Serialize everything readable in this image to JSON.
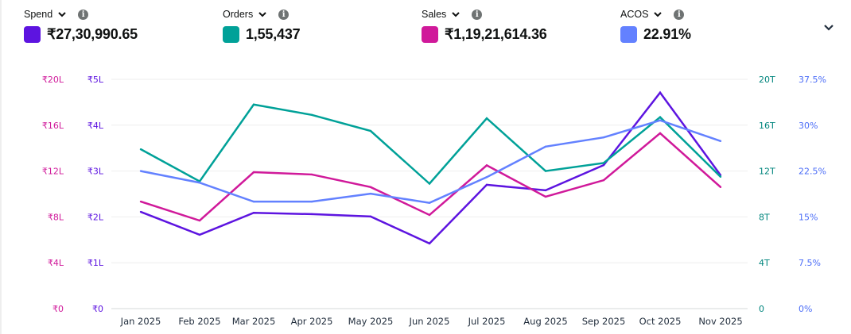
{
  "metrics": [
    {
      "label": "Spend",
      "value": "₹27,30,990.65",
      "color": "#5d14e0",
      "info_icon": "info-icon",
      "dropdown_icon": "chevron-down-icon"
    },
    {
      "label": "Orders",
      "value": "1,55,437",
      "color": "#00a198",
      "info_icon": "info-icon",
      "dropdown_icon": "chevron-down-icon"
    },
    {
      "label": "Sales",
      "value": "₹1,19,21,614.36",
      "color": "#d0199a",
      "info_icon": "info-icon",
      "dropdown_icon": "chevron-down-icon"
    },
    {
      "label": "ACOS",
      "value": "22.91%",
      "color": "#6381ff",
      "info_icon": "info-icon",
      "dropdown_icon": "chevron-down-icon"
    }
  ],
  "expand_icon": "chevron-down-icon",
  "chart_data": {
    "type": "line",
    "title": "",
    "grid": true,
    "categories": [
      "Jan 2025",
      "Feb 2025",
      "Mar 2025",
      "Apr 2025",
      "May 2025",
      "Jun 2025",
      "Jul 2025",
      "Aug 2025",
      "Sep 2025",
      "Oct 2025",
      "Nov 2025"
    ],
    "axes": {
      "sales_left": {
        "ticks": [
          "₹0",
          "₹4L",
          "₹8L",
          "₹12L",
          "₹16L",
          "₹20L"
        ],
        "range": [
          0,
          2000000
        ],
        "color": "#d0199a"
      },
      "spend_left": {
        "ticks": [
          "₹0",
          "₹1L",
          "₹2L",
          "₹3L",
          "₹4L",
          "₹5L"
        ],
        "range": [
          0,
          500000
        ],
        "color": "#5d14e0"
      },
      "orders_right": {
        "ticks": [
          "0",
          "4T",
          "8T",
          "12T",
          "16T",
          "20T"
        ],
        "range": [
          0,
          20000
        ],
        "color": "#00857d"
      },
      "acos_right": {
        "ticks": [
          "0%",
          "7.5%",
          "15%",
          "22.5%",
          "30%",
          "37.5%"
        ],
        "range": [
          0,
          37.5
        ],
        "color": "#4a6cf7"
      }
    },
    "series": [
      {
        "name": "Spend",
        "axis": "spend_left",
        "color": "#5d14e0",
        "values": [
          211000,
          161000,
          209000,
          206000,
          201000,
          142000,
          270000,
          258000,
          313000,
          471000,
          291000
        ]
      },
      {
        "name": "Orders",
        "axis": "orders_right",
        "color": "#00a198",
        "values": [
          13900,
          11100,
          17800,
          16900,
          15500,
          10900,
          16600,
          12000,
          12700,
          16700,
          11500
        ]
      },
      {
        "name": "Sales",
        "axis": "sales_left",
        "color": "#d0199a",
        "values": [
          934000,
          768000,
          1190000,
          1170000,
          1060000,
          817000,
          1250000,
          976000,
          1120000,
          1530000,
          1060000
        ]
      },
      {
        "name": "ACOS",
        "axis": "acos_right",
        "color": "#6381ff",
        "values": [
          22.5,
          20.6,
          17.5,
          17.5,
          18.8,
          17.3,
          21.5,
          26.5,
          28.0,
          30.8,
          27.4
        ]
      }
    ]
  }
}
